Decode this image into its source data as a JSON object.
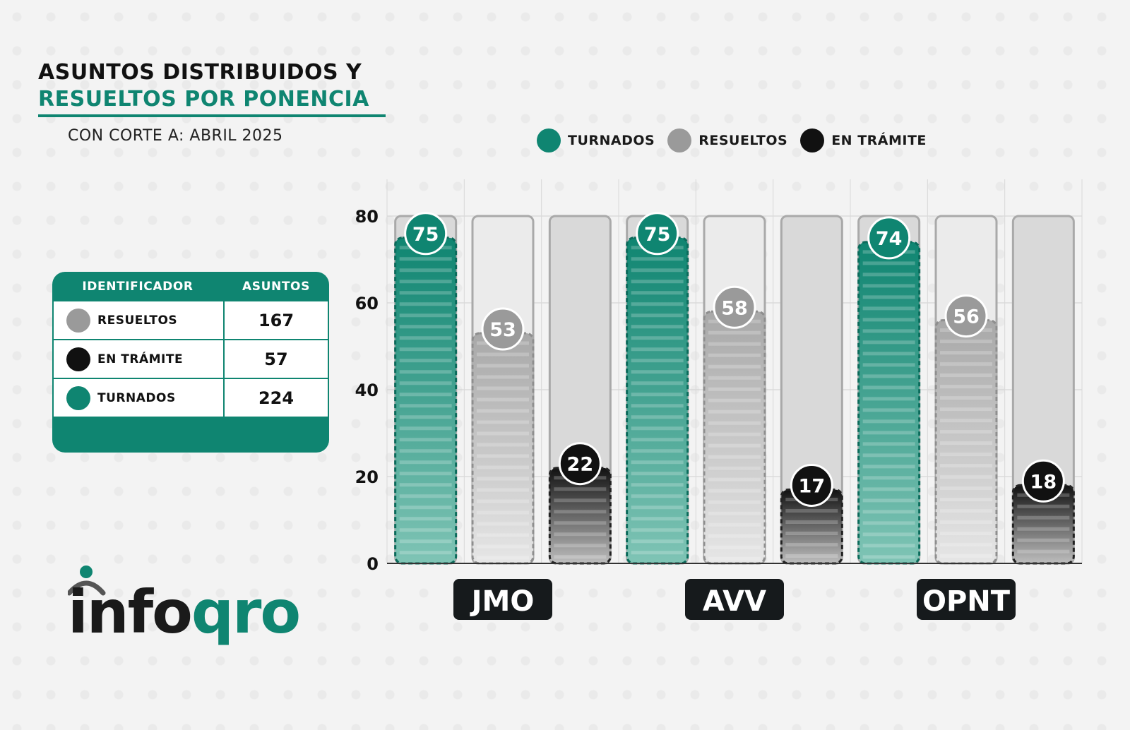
{
  "title_line1": "ASUNTOS DISTRIBUIDOS Y",
  "title_line2": "RESUELTOS POR PONENCIA",
  "subtitle": "CON CORTE A: ABRIL 2025",
  "colors": {
    "turnados": "#0f8571",
    "resueltos": "#9a9a9a",
    "en_tramite": "#111111",
    "accent": "#0f8571"
  },
  "table": {
    "headers": [
      "IDENTIFICADOR",
      "ASUNTOS"
    ],
    "rows": [
      {
        "label": "RESUELTOS",
        "value": "167",
        "color": "#9a9a9a"
      },
      {
        "label": "EN TRÁMITE",
        "value": "57",
        "color": "#111111"
      },
      {
        "label": "TURNADOS",
        "value": "224",
        "color": "#0f8571"
      }
    ]
  },
  "logo": {
    "part1": "info",
    "part2": "qro"
  },
  "chart_data": {
    "type": "bar",
    "categories": [
      "JMO",
      "AVV",
      "OPNT"
    ],
    "series": [
      {
        "name": "TURNADOS",
        "values": [
          75,
          75,
          74
        ]
      },
      {
        "name": "RESUELTOS",
        "values": [
          53,
          58,
          56
        ]
      },
      {
        "name": "EN TRÁMITE",
        "values": [
          22,
          17,
          18
        ]
      }
    ],
    "ylim": [
      0,
      80
    ],
    "yticks": [
      "0",
      "20",
      "40",
      "60",
      "80"
    ],
    "grid": true,
    "legend_position": "top"
  }
}
